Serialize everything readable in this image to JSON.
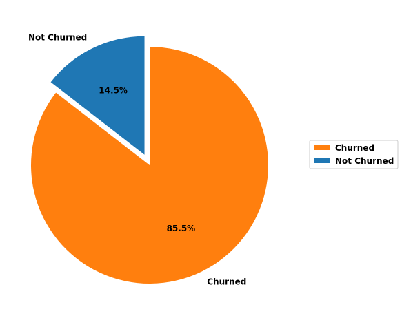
{
  "chart_data": {
    "type": "pie",
    "slices": [
      {
        "label": "Churned",
        "value": 85.5,
        "pct_label": "85.5%",
        "color": "#ff7f0e",
        "exploded": false
      },
      {
        "label": "Not Churned",
        "value": 14.5,
        "pct_label": "14.5%",
        "color": "#1f77b4",
        "exploded": true
      }
    ],
    "start_angle_deg": 90,
    "direction": "clockwise",
    "legend": {
      "placement": "right",
      "entries": [
        {
          "label": "Churned",
          "color": "#ff7f0e"
        },
        {
          "label": "Not Churned",
          "color": "#1f77b4"
        }
      ]
    }
  }
}
